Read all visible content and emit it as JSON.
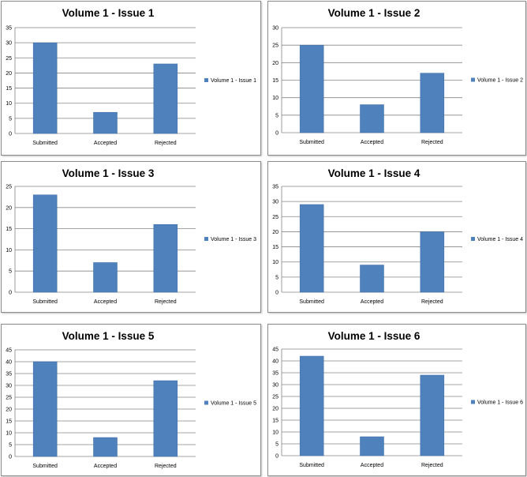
{
  "chart_data": [
    {
      "type": "bar",
      "title": "Volume 1 - Issue 1",
      "categories": [
        "Submitted",
        "Accepted",
        "Rejected"
      ],
      "series": [
        {
          "name": "Volume 1 - Issue 1",
          "values": [
            30,
            7,
            23
          ]
        }
      ],
      "ylim": [
        0,
        35
      ],
      "yticks": [
        "0",
        "5",
        "10",
        "15",
        "20",
        "25",
        "30",
        "35"
      ],
      "grid": true,
      "legend": "right"
    },
    {
      "type": "bar",
      "title": "Volume 1 - Issue 2",
      "categories": [
        "Submitted",
        "Accepted",
        "Rejected"
      ],
      "series": [
        {
          "name": "Volume 1 - Issue 2",
          "values": [
            25,
            8,
            17
          ]
        }
      ],
      "ylim": [
        0,
        30
      ],
      "yticks": [
        "0",
        "5",
        "10",
        "15",
        "20",
        "25",
        "30"
      ],
      "grid": true,
      "legend": "right"
    },
    {
      "type": "bar",
      "title": "Volume 1 - Issue 3",
      "categories": [
        "Submitted",
        "Accepted",
        "Rejected"
      ],
      "series": [
        {
          "name": "Volume 1 - Issue 3",
          "values": [
            23,
            7,
            16
          ]
        }
      ],
      "ylim": [
        0,
        25
      ],
      "yticks": [
        "0",
        "5",
        "10",
        "15",
        "20",
        "25"
      ],
      "grid": true,
      "legend": "right"
    },
    {
      "type": "bar",
      "title": "Volume 1 - Issue 4",
      "categories": [
        "Submitted",
        "Accepted",
        "Rejected"
      ],
      "series": [
        {
          "name": "Volume 1 - Issue 4",
          "values": [
            29,
            9,
            20
          ]
        }
      ],
      "ylim": [
        0,
        35
      ],
      "yticks": [
        "0",
        "5",
        "10",
        "15",
        "20",
        "25",
        "30",
        "35"
      ],
      "grid": true,
      "legend": "right"
    },
    {
      "type": "bar",
      "title": "Volume 1 - Issue 5",
      "categories": [
        "Submitted",
        "Accepted",
        "Rejected"
      ],
      "series": [
        {
          "name": "Volume 1 - Issue 5",
          "values": [
            40,
            8,
            32
          ]
        }
      ],
      "ylim": [
        0,
        45
      ],
      "yticks": [
        "0",
        "5",
        "10",
        "15",
        "20",
        "25",
        "30",
        "35",
        "40",
        "45"
      ],
      "grid": true,
      "legend": "right"
    },
    {
      "type": "bar",
      "title": "Volume 1 - Issue 6",
      "categories": [
        "Submitted",
        "Accepted",
        "Rejected"
      ],
      "series": [
        {
          "name": "Volume 1 - Issue 6",
          "values": [
            42,
            8,
            34
          ]
        }
      ],
      "ylim": [
        0,
        45
      ],
      "yticks": [
        "0",
        "5",
        "10",
        "15",
        "20",
        "25",
        "30",
        "35",
        "40",
        "45"
      ],
      "grid": true,
      "legend": "right"
    }
  ],
  "colors": {
    "bar": "#4f81bd",
    "bar_edge": "#3a6aa3",
    "gridline": "#868686",
    "axis": "#868686"
  }
}
